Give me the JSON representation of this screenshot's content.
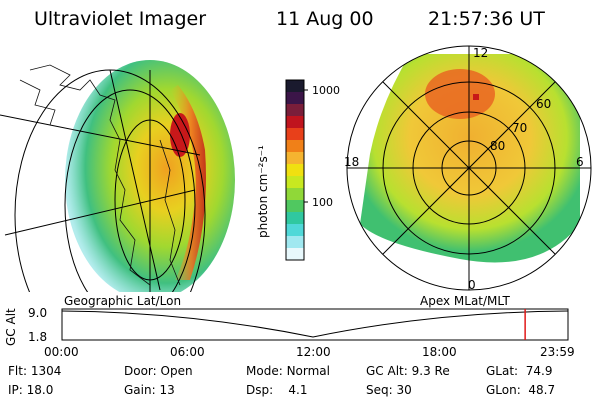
{
  "header": {
    "instrument": "Ultraviolet Imager",
    "date": "11 Aug 00",
    "time": "21:57:36 UT"
  },
  "colorbar": {
    "unit_label": "photon cm⁻²s⁻¹",
    "ticks": [
      "1000",
      "100"
    ],
    "colors": [
      "#1a1a2e",
      "#3b1548",
      "#7a1e3a",
      "#c0141e",
      "#e8401a",
      "#f08018",
      "#f5b430",
      "#f0e010",
      "#c8e820",
      "#90d838",
      "#50c860",
      "#30c8a0",
      "#50d8d8",
      "#a0e8f0",
      "#e8f8fc"
    ]
  },
  "polar": {
    "mlt_labels": {
      "top": "12",
      "left": "18",
      "right": "6",
      "bottom": "0"
    },
    "lat_labels": [
      "60",
      "70",
      "80"
    ]
  },
  "panel_labels": {
    "left": "Geographic Lat/Lon",
    "right": "Apex MLat/MLT"
  },
  "altitude_plot": {
    "ylabel": "GC Alt",
    "yticks": [
      "9.0",
      "1.8"
    ],
    "xticks": [
      "00:00",
      "06:00",
      "12:00",
      "18:00",
      "23:59"
    ],
    "marker_time": "21:58"
  },
  "info": {
    "row1": [
      {
        "label": "Flt:",
        "value": "1304"
      },
      {
        "label": "Door:",
        "value": "Open"
      },
      {
        "label": "Mode:",
        "value": "Normal"
      },
      {
        "label": "GC Alt:",
        "value": "9.3 Re"
      },
      {
        "label": "GLat:",
        "value": "74.9"
      }
    ],
    "row2": [
      {
        "label": "IP:",
        "value": "18.0"
      },
      {
        "label": "Gain:",
        "value": "13"
      },
      {
        "label": "Dsp:",
        "value": "4.1"
      },
      {
        "label": "Seq:",
        "value": "30"
      },
      {
        "label": "GLon:",
        "value": "48.7"
      }
    ]
  }
}
